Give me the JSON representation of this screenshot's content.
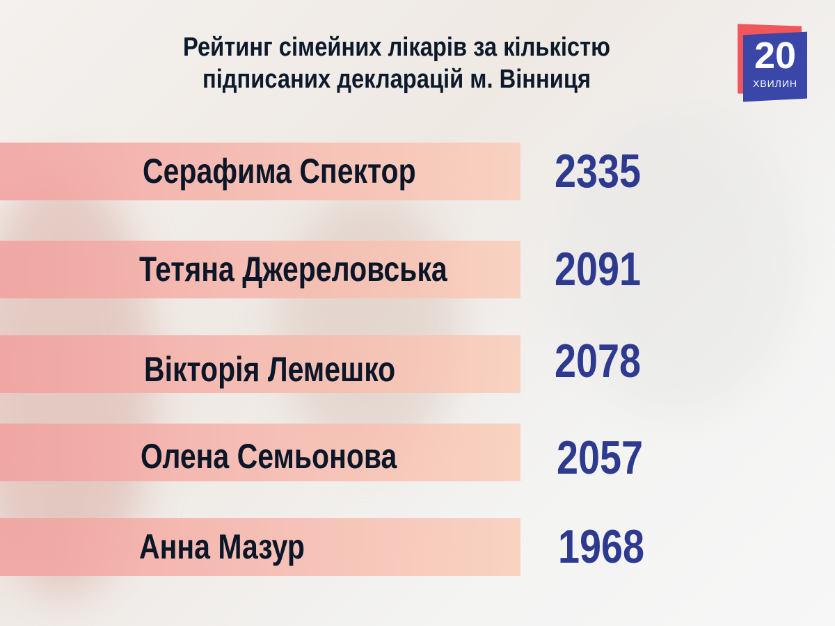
{
  "title_line1": "Рейтинг сімейних лікарів за кількістю",
  "title_line2": "підписаних декларацій м. Вінниця",
  "logo": {
    "number": "20",
    "word": "ХВИЛИН",
    "colors": {
      "red": "#f0565a",
      "blue": "#3a47a8"
    }
  },
  "colors": {
    "bar": "#f3aaa6",
    "value": "#2e3a8f",
    "name": "#0b1628"
  },
  "ranking": [
    {
      "name": "Серафима Спектор",
      "value": "2335"
    },
    {
      "name": "Тетяна Джереловська",
      "value": "2091"
    },
    {
      "name": "Вікторія Лемешко",
      "value": "2078"
    },
    {
      "name": "Олена Семьонова",
      "value": "2057"
    },
    {
      "name": "Анна Мазур",
      "value": "1968"
    }
  ]
}
